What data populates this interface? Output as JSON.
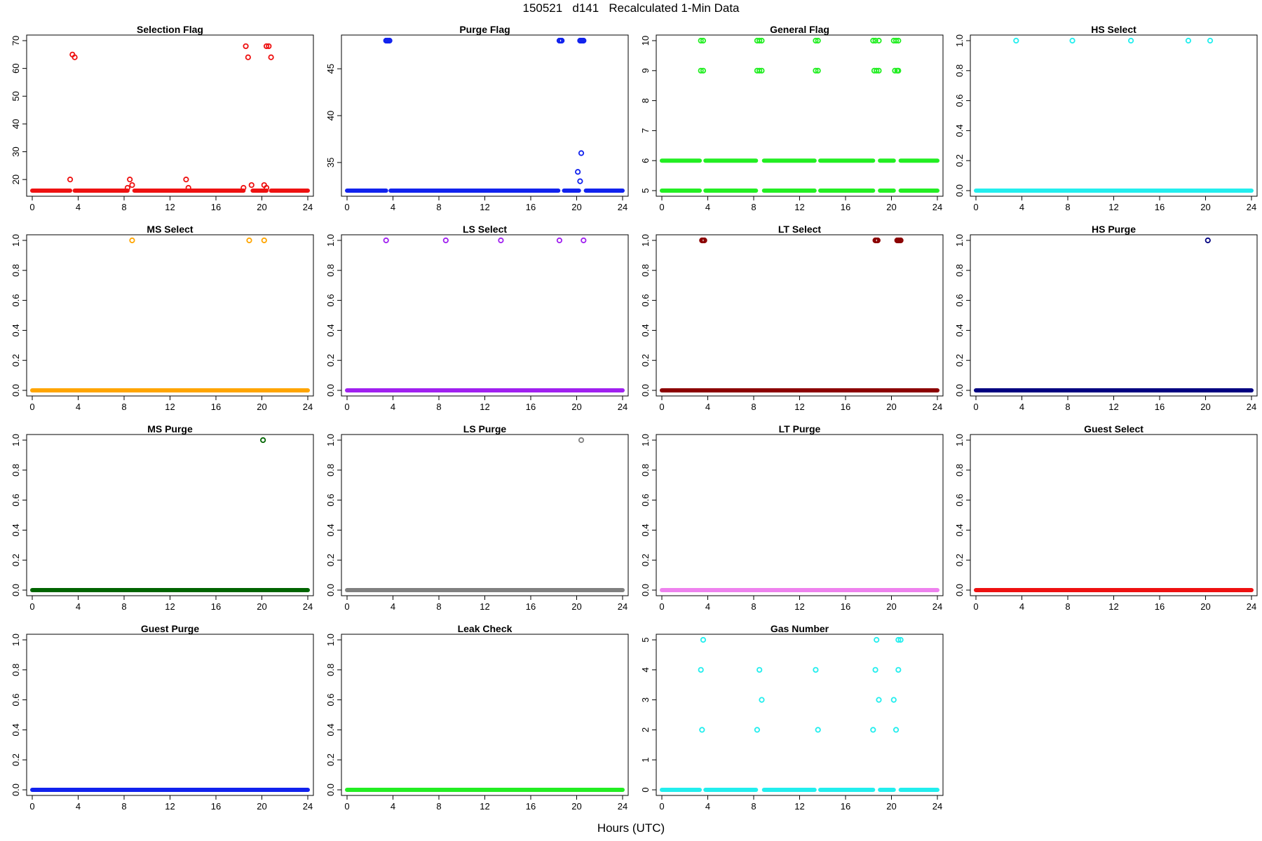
{
  "title": "150521   d141   Recalculated 1-Min Data",
  "xlabel": "Hours (UTC)",
  "chart_data": [
    {
      "type": "scatter",
      "title": "Selection Flag",
      "color": "#ee1111",
      "xlim": [
        0,
        24
      ],
      "ylim": [
        16,
        70
      ],
      "xticks": [
        0,
        4,
        8,
        12,
        16,
        20,
        24
      ],
      "yticks": [
        20,
        30,
        40,
        50,
        60,
        70
      ],
      "baseline": 16,
      "segments": [
        [
          0,
          3.3
        ],
        [
          3.7,
          8.3
        ],
        [
          8.9,
          18.4
        ],
        [
          19.2,
          20.4
        ],
        [
          20.8,
          24
        ]
      ],
      "points": [
        [
          3.3,
          20
        ],
        [
          3.5,
          65
        ],
        [
          3.7,
          64
        ],
        [
          8.3,
          17
        ],
        [
          8.5,
          20
        ],
        [
          8.7,
          18
        ],
        [
          13.4,
          20
        ],
        [
          13.6,
          17
        ],
        [
          18.4,
          17
        ],
        [
          18.6,
          68
        ],
        [
          18.8,
          64
        ],
        [
          19.1,
          18
        ],
        [
          20.2,
          18
        ],
        [
          20.4,
          17
        ],
        [
          20.4,
          68
        ],
        [
          20.6,
          68
        ],
        [
          20.8,
          64
        ]
      ]
    },
    {
      "type": "scatter",
      "title": "Purge Flag",
      "color": "#1122ee",
      "xlim": [
        0,
        24
      ],
      "ylim": [
        32,
        48
      ],
      "xticks": [
        0,
        4,
        8,
        12,
        16,
        20,
        24
      ],
      "yticks": [
        35,
        40,
        45
      ],
      "baseline": 32,
      "segments": [
        [
          0,
          3.4
        ],
        [
          3.8,
          18.4
        ],
        [
          18.9,
          20.2
        ],
        [
          20.8,
          24
        ]
      ],
      "points": [
        [
          3.4,
          48
        ],
        [
          3.5,
          48
        ],
        [
          3.6,
          48
        ],
        [
          3.7,
          48
        ],
        [
          18.5,
          48
        ],
        [
          18.6,
          48
        ],
        [
          18.7,
          48
        ],
        [
          20.3,
          48
        ],
        [
          20.4,
          48
        ],
        [
          20.5,
          48
        ],
        [
          20.6,
          48
        ],
        [
          20.1,
          34
        ],
        [
          20.3,
          33
        ],
        [
          20.4,
          36
        ]
      ]
    },
    {
      "type": "scatter",
      "title": "General Flag",
      "color": "#22ee22",
      "xlim": [
        0,
        24
      ],
      "ylim": [
        5,
        10
      ],
      "xticks": [
        0,
        4,
        8,
        12,
        16,
        20,
        24
      ],
      "yticks": [
        5,
        6,
        7,
        8,
        9,
        10
      ],
      "baseline": 5,
      "baseline2": 6,
      "segments": [
        [
          0,
          3.3
        ],
        [
          3.8,
          8.2
        ],
        [
          8.9,
          13.3
        ],
        [
          13.8,
          18.4
        ],
        [
          19.0,
          20.2
        ],
        [
          20.8,
          24
        ]
      ],
      "points": [
        [
          3.4,
          10
        ],
        [
          3.6,
          10
        ],
        [
          3.4,
          9
        ],
        [
          3.6,
          9
        ],
        [
          8.3,
          10
        ],
        [
          8.5,
          10
        ],
        [
          8.7,
          10
        ],
        [
          8.3,
          9
        ],
        [
          8.5,
          9
        ],
        [
          8.7,
          9
        ],
        [
          13.4,
          10
        ],
        [
          13.6,
          10
        ],
        [
          13.4,
          9
        ],
        [
          13.6,
          9
        ],
        [
          18.4,
          10
        ],
        [
          18.6,
          10
        ],
        [
          18.9,
          10
        ],
        [
          18.5,
          9
        ],
        [
          18.7,
          9
        ],
        [
          18.9,
          9
        ],
        [
          20.2,
          10
        ],
        [
          20.4,
          10
        ],
        [
          20.6,
          10
        ],
        [
          20.3,
          9
        ],
        [
          20.5,
          9
        ],
        [
          20.6,
          9
        ]
      ]
    },
    {
      "type": "scatter",
      "title": "HS Select",
      "color": "#22eeee",
      "xlim": [
        0,
        24
      ],
      "ylim": [
        0,
        1
      ],
      "xticks": [
        0,
        4,
        8,
        12,
        16,
        20,
        24
      ],
      "yticks": [
        0,
        0.2,
        0.4,
        0.6,
        0.8,
        1
      ],
      "baseline": 0,
      "segments": [
        [
          0,
          24
        ]
      ],
      "points": [
        [
          3.5,
          1
        ],
        [
          8.4,
          1
        ],
        [
          13.5,
          1
        ],
        [
          18.5,
          1
        ],
        [
          20.4,
          1
        ]
      ]
    },
    {
      "type": "scatter",
      "title": "MS Select",
      "color": "#ffa500",
      "xlim": [
        0,
        24
      ],
      "ylim": [
        0,
        1
      ],
      "xticks": [
        0,
        4,
        8,
        12,
        16,
        20,
        24
      ],
      "yticks": [
        0,
        0.2,
        0.4,
        0.6,
        0.8,
        1
      ],
      "baseline": 0,
      "segments": [
        [
          0,
          24
        ]
      ],
      "points": [
        [
          8.7,
          1
        ],
        [
          18.9,
          1
        ],
        [
          20.2,
          1
        ]
      ]
    },
    {
      "type": "scatter",
      "title": "LS Select",
      "color": "#a020f0",
      "xlim": [
        0,
        24
      ],
      "ylim": [
        0,
        1
      ],
      "xticks": [
        0,
        4,
        8,
        12,
        16,
        20,
        24
      ],
      "yticks": [
        0,
        0.2,
        0.4,
        0.6,
        0.8,
        1
      ],
      "baseline": 0,
      "segments": [
        [
          0,
          24
        ]
      ],
      "points": [
        [
          3.4,
          1
        ],
        [
          8.6,
          1
        ],
        [
          13.4,
          1
        ],
        [
          18.5,
          1
        ],
        [
          20.6,
          1
        ]
      ]
    },
    {
      "type": "scatter",
      "title": "LT Select",
      "color": "#8b0000",
      "xlim": [
        0,
        24
      ],
      "ylim": [
        0,
        1
      ],
      "xticks": [
        0,
        4,
        8,
        12,
        16,
        20,
        24
      ],
      "yticks": [
        0,
        0.2,
        0.4,
        0.6,
        0.8,
        1
      ],
      "baseline": 0,
      "segments": [
        [
          0,
          24
        ]
      ],
      "points": [
        [
          3.5,
          1
        ],
        [
          3.6,
          1
        ],
        [
          3.7,
          1
        ],
        [
          18.6,
          1
        ],
        [
          18.7,
          1
        ],
        [
          18.8,
          1
        ],
        [
          20.5,
          1
        ],
        [
          20.6,
          1
        ],
        [
          20.7,
          1
        ],
        [
          20.8,
          1
        ]
      ]
    },
    {
      "type": "scatter",
      "title": "HS Purge",
      "color": "#000080",
      "xlim": [
        0,
        24
      ],
      "ylim": [
        0,
        1
      ],
      "xticks": [
        0,
        4,
        8,
        12,
        16,
        20,
        24
      ],
      "yticks": [
        0,
        0.2,
        0.4,
        0.6,
        0.8,
        1
      ],
      "baseline": 0,
      "segments": [
        [
          0,
          24
        ]
      ],
      "points": [
        [
          20.2,
          1
        ]
      ]
    },
    {
      "type": "scatter",
      "title": "MS Purge",
      "color": "#006400",
      "xlim": [
        0,
        24
      ],
      "ylim": [
        0,
        1
      ],
      "xticks": [
        0,
        4,
        8,
        12,
        16,
        20,
        24
      ],
      "yticks": [
        0,
        0.2,
        0.4,
        0.6,
        0.8,
        1
      ],
      "baseline": 0,
      "segments": [
        [
          0,
          24
        ]
      ],
      "points": [
        [
          20.1,
          1
        ]
      ]
    },
    {
      "type": "scatter",
      "title": "LS Purge",
      "color": "#808080",
      "xlim": [
        0,
        24
      ],
      "ylim": [
        0,
        1
      ],
      "xticks": [
        0,
        4,
        8,
        12,
        16,
        20,
        24
      ],
      "yticks": [
        0,
        0.2,
        0.4,
        0.6,
        0.8,
        1
      ],
      "baseline": 0,
      "segments": [
        [
          0,
          24
        ]
      ],
      "points": [
        [
          20.4,
          1
        ]
      ]
    },
    {
      "type": "scatter",
      "title": "LT Purge",
      "color": "#ee82ee",
      "xlim": [
        0,
        24
      ],
      "ylim": [
        0,
        1
      ],
      "xticks": [
        0,
        4,
        8,
        12,
        16,
        20,
        24
      ],
      "yticks": [
        0,
        0.2,
        0.4,
        0.6,
        0.8,
        1
      ],
      "baseline": 0,
      "segments": [
        [
          0,
          24
        ]
      ],
      "points": []
    },
    {
      "type": "scatter",
      "title": "Guest Select",
      "color": "#ee1111",
      "xlim": [
        0,
        24
      ],
      "ylim": [
        0,
        1
      ],
      "xticks": [
        0,
        4,
        8,
        12,
        16,
        20,
        24
      ],
      "yticks": [
        0,
        0.2,
        0.4,
        0.6,
        0.8,
        1
      ],
      "baseline": 0,
      "segments": [
        [
          0,
          24
        ]
      ],
      "points": []
    },
    {
      "type": "scatter",
      "title": "Guest Purge",
      "color": "#1122ee",
      "xlim": [
        0,
        24
      ],
      "ylim": [
        0,
        1
      ],
      "xticks": [
        0,
        4,
        8,
        12,
        16,
        20,
        24
      ],
      "yticks": [
        0,
        0.2,
        0.4,
        0.6,
        0.8,
        1
      ],
      "baseline": 0,
      "segments": [
        [
          0,
          24
        ]
      ],
      "points": []
    },
    {
      "type": "scatter",
      "title": "Leak Check",
      "color": "#22ee22",
      "xlim": [
        0,
        24
      ],
      "ylim": [
        0,
        1
      ],
      "xticks": [
        0,
        4,
        8,
        12,
        16,
        20,
        24
      ],
      "yticks": [
        0,
        0.2,
        0.4,
        0.6,
        0.8,
        1
      ],
      "baseline": 0,
      "segments": [
        [
          0,
          24
        ]
      ],
      "points": []
    },
    {
      "type": "scatter",
      "title": "Gas Number",
      "color": "#22eeee",
      "xlim": [
        0,
        24
      ],
      "ylim": [
        0,
        5
      ],
      "xticks": [
        0,
        4,
        8,
        12,
        16,
        20,
        24
      ],
      "yticks": [
        0,
        1,
        2,
        3,
        4,
        5
      ],
      "baseline": 0,
      "segments": [
        [
          0,
          3.3
        ],
        [
          3.8,
          8.2
        ],
        [
          8.9,
          13.3
        ],
        [
          13.8,
          18.4
        ],
        [
          19.0,
          20.2
        ],
        [
          20.8,
          24
        ]
      ],
      "points": [
        [
          3.4,
          4
        ],
        [
          3.6,
          5
        ],
        [
          3.5,
          2
        ],
        [
          8.3,
          2
        ],
        [
          8.5,
          4
        ],
        [
          8.7,
          3
        ],
        [
          13.4,
          4
        ],
        [
          13.6,
          2
        ],
        [
          18.4,
          2
        ],
        [
          18.6,
          4
        ],
        [
          18.7,
          5
        ],
        [
          18.9,
          3
        ],
        [
          20.2,
          3
        ],
        [
          20.4,
          2
        ],
        [
          20.6,
          4
        ],
        [
          20.6,
          5
        ],
        [
          20.8,
          5
        ]
      ]
    }
  ]
}
